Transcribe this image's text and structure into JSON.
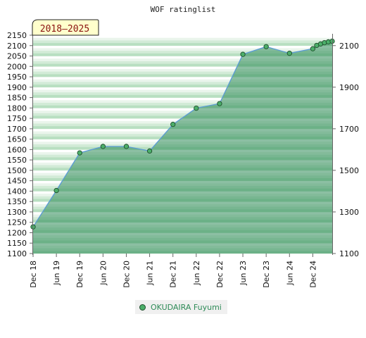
{
  "chart_data": {
    "type": "area",
    "title": "WOF ratinglist",
    "period_badge": "2018–2025",
    "x_tick_labels": [
      "Dec 18",
      "Jun 19",
      "Dec 19",
      "Jun 20",
      "Dec 20",
      "Jun 21",
      "Dec 21",
      "Jun 22",
      "Dec 22",
      "Jun 23",
      "Dec 23",
      "Jun 24",
      "Dec 24"
    ],
    "left_axis": {
      "ylim": [
        1100,
        2150
      ],
      "ticks": [
        1100,
        1150,
        1200,
        1250,
        1300,
        1350,
        1400,
        1450,
        1500,
        1550,
        1600,
        1650,
        1700,
        1750,
        1800,
        1850,
        1900,
        1950,
        2000,
        2050,
        2100,
        2150
      ]
    },
    "right_axis": {
      "ticks": [
        1100,
        1300,
        1500,
        1700,
        1900,
        2100
      ]
    },
    "series": [
      {
        "name": "OKUDAIRA Fuyumi",
        "color": "#4caf6a",
        "line_color": "#5b9bd5",
        "points": [
          {
            "x": "2018-12",
            "y": 1228
          },
          {
            "x": "2019-06",
            "y": 1403
          },
          {
            "x": "2019-12",
            "y": 1584
          },
          {
            "x": "2020-06",
            "y": 1615
          },
          {
            "x": "2020-12",
            "y": 1615
          },
          {
            "x": "2021-06",
            "y": 1593
          },
          {
            "x": "2021-12",
            "y": 1721
          },
          {
            "x": "2022-06",
            "y": 1799
          },
          {
            "x": "2022-12",
            "y": 1821
          },
          {
            "x": "2023-06",
            "y": 2058
          },
          {
            "x": "2023-12",
            "y": 2095
          },
          {
            "x": "2024-06",
            "y": 2063
          },
          {
            "x": "2024-12",
            "y": 2085
          },
          {
            "x": "2025-01",
            "y": 2101
          },
          {
            "x": "2025-02",
            "y": 2108
          },
          {
            "x": "2025-03",
            "y": 2114
          },
          {
            "x": "2025-04",
            "y": 2118
          },
          {
            "x": "2025-05",
            "y": 2121
          }
        ]
      }
    ]
  },
  "legend": {
    "label": "OKUDAIRA Fuyumi"
  }
}
